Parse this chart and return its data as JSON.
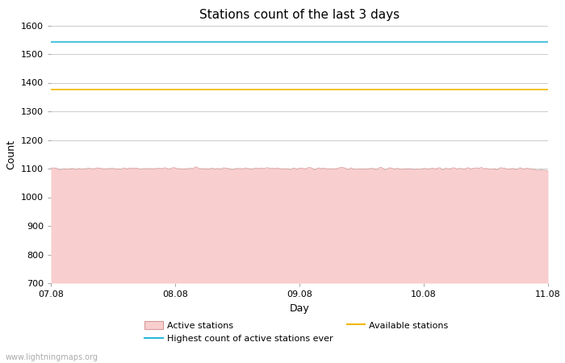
{
  "title": "Stations count of the last 3 days",
  "xlabel": "Day",
  "ylabel": "Count",
  "ylim": [
    700,
    1600
  ],
  "yticks": [
    700,
    800,
    900,
    1000,
    1100,
    1200,
    1300,
    1400,
    1500,
    1600
  ],
  "x_start": 0,
  "x_end": 96,
  "active_stations_value": 1100,
  "highest_ever_value": 1543,
  "available_stations_value": 1375,
  "active_fill_color": "#f9cece",
  "active_line_color": "#d89898",
  "highest_line_color": "#29b8d8",
  "available_line_color": "#f0b800",
  "background_color": "#ffffff",
  "grid_color": "#cccccc",
  "x_tick_labels": [
    "07.08",
    "08.08",
    "09.08",
    "10.08",
    "11.08"
  ],
  "x_tick_positions": [
    0,
    24,
    48,
    72,
    96
  ],
  "watermark": "www.lightningmaps.org",
  "title_fontsize": 11,
  "axis_label_fontsize": 9,
  "tick_fontsize": 8,
  "legend_fontsize": 8
}
